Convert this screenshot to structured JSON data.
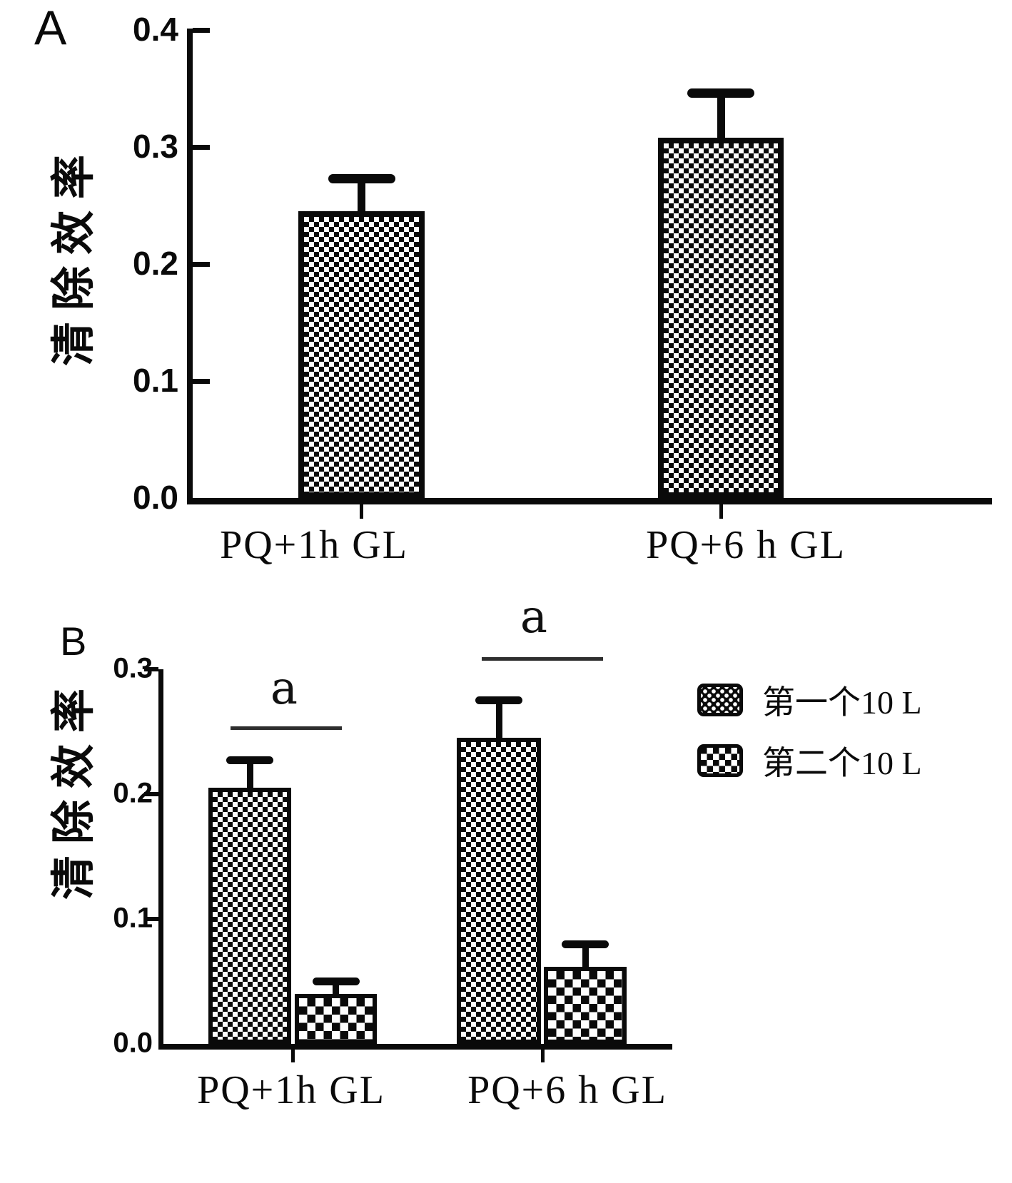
{
  "figure": {
    "background": "#ffffff",
    "ink": "#0a0a0a",
    "significance_line_color": "#2e2e2e"
  },
  "panels": [
    {
      "id": "A",
      "letter": "A",
      "y_axis_title": "清除效率",
      "y_ticks": [
        "0.0",
        "0.1",
        "0.2",
        "0.3",
        "0.4"
      ],
      "chart_data": {
        "type": "bar",
        "categories": [
          "PQ+1h GL",
          "PQ+6 h GL"
        ],
        "values": [
          0.245,
          0.308
        ],
        "errors": [
          0.028,
          0.038
        ],
        "title": "",
        "xlabel": "",
        "ylabel": "清除效率",
        "ylim": [
          0,
          0.4
        ],
        "grid": false,
        "bar_pattern": "fine-checker"
      }
    },
    {
      "id": "B",
      "letter": "B",
      "y_axis_title": "清除效率",
      "y_ticks": [
        "0.0",
        "0.1",
        "0.2",
        "0.3"
      ],
      "chart_data": {
        "type": "grouped-bar",
        "categories": [
          "PQ+1h GL",
          "PQ+6 h GL"
        ],
        "series": [
          {
            "name": "第一个10 L",
            "pattern": "fine-checker",
            "values": [
              0.205,
              0.245
            ],
            "errors": [
              0.022,
              0.03
            ]
          },
          {
            "name": "第二个10 L",
            "pattern": "coarse-checker",
            "values": [
              0.04,
              0.062
            ],
            "errors": [
              0.01,
              0.018
            ]
          }
        ],
        "title": "",
        "xlabel": "",
        "ylabel": "清除效率",
        "ylim": [
          0,
          0.3
        ],
        "grid": false,
        "legend_position": "right",
        "annotations": [
          {
            "text": "a",
            "over_category": "PQ+1h GL"
          },
          {
            "text": "a",
            "over_category": "PQ+6 h GL"
          }
        ]
      },
      "legend": {
        "items": [
          {
            "label": "第一个10 L",
            "pattern": "fine-checker"
          },
          {
            "label": "第二个10 L",
            "pattern": "coarse-checker"
          }
        ]
      }
    }
  ]
}
